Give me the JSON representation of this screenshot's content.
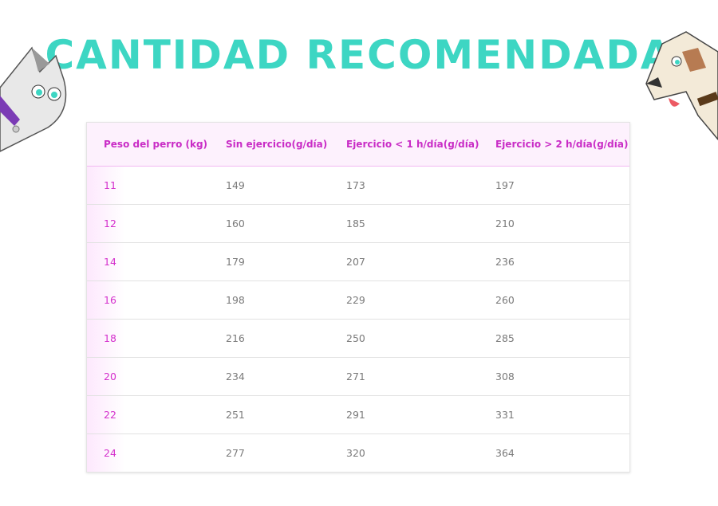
{
  "header": {
    "title": "CANTIDAD RECOMENDADA"
  },
  "table": {
    "columns": [
      "Peso del perro (kg)",
      "Sin ejercicio(g/día)",
      "Ejercicio < 1 h/día(g/día)",
      "Ejercicio > 2 h/día(g/día)"
    ],
    "rows": [
      [
        11,
        149,
        173,
        197
      ],
      [
        12,
        160,
        185,
        210
      ],
      [
        14,
        179,
        207,
        236
      ],
      [
        16,
        198,
        229,
        260
      ],
      [
        18,
        216,
        250,
        285
      ],
      [
        20,
        234,
        271,
        308
      ],
      [
        22,
        251,
        291,
        331
      ],
      [
        24,
        277,
        320,
        364
      ]
    ]
  }
}
